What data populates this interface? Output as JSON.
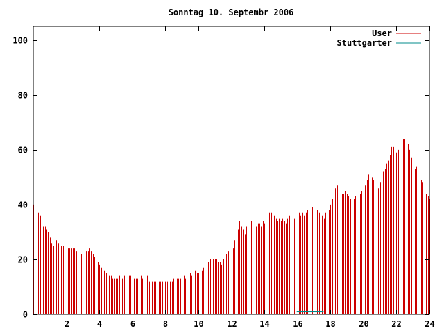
{
  "chart_data": {
    "type": "bar",
    "title": "Sonntag 10. Septembr 2006",
    "xlabel": "",
    "ylabel": "",
    "xlim": [
      0,
      24
    ],
    "ylim": [
      0,
      105
    ],
    "x_ticks": [
      "2",
      "4",
      "6",
      "8",
      "10",
      "12",
      "14",
      "16",
      "18",
      "20",
      "22",
      "24"
    ],
    "y_ticks": [
      "0",
      "20",
      "40",
      "60",
      "80",
      "100"
    ],
    "grid": false,
    "legend_position": "top-right",
    "series": [
      {
        "name": "User",
        "color": "#cc0000",
        "x_start": 0,
        "x_step": 0.1,
        "values": [
          40,
          38,
          37,
          37,
          36,
          32,
          32,
          32,
          31,
          30,
          28,
          26,
          25,
          26,
          27,
          26,
          25,
          25,
          25,
          24,
          24,
          24,
          24,
          24,
          24,
          24,
          23,
          23,
          23,
          22,
          23,
          23,
          23,
          23,
          24,
          23,
          22,
          21,
          20,
          19,
          18,
          17,
          16,
          16,
          15,
          15,
          14,
          14,
          13,
          13,
          13,
          13,
          14,
          13,
          13,
          14,
          14,
          14,
          14,
          14,
          14,
          13,
          13,
          13,
          13,
          14,
          13,
          14,
          13,
          14,
          12,
          12,
          12,
          12,
          12,
          12,
          12,
          12,
          12,
          12,
          12,
          12,
          13,
          12,
          12,
          13,
          13,
          13,
          13,
          13,
          14,
          14,
          13,
          14,
          14,
          15,
          14,
          15,
          16,
          15,
          15,
          14,
          16,
          17,
          18,
          18,
          19,
          20,
          22,
          20,
          20,
          20,
          19,
          19,
          18,
          20,
          23,
          22,
          23,
          24,
          24,
          24,
          27,
          28,
          31,
          34,
          32,
          31,
          29,
          32,
          35,
          33,
          34,
          32,
          33,
          32,
          33,
          33,
          32,
          34,
          33,
          34,
          36,
          37,
          37,
          37,
          36,
          35,
          34,
          35,
          34,
          35,
          34,
          33,
          35,
          36,
          35,
          34,
          35,
          36,
          37,
          37,
          36,
          37,
          36,
          37,
          38,
          40,
          40,
          39,
          40,
          47,
          38,
          37,
          38,
          36,
          35,
          37,
          39,
          38,
          40,
          42,
          44,
          46,
          47,
          46,
          46,
          44,
          44,
          45,
          44,
          43,
          42,
          43,
          42,
          43,
          42,
          43,
          44,
          45,
          47,
          47,
          49,
          51,
          51,
          50,
          49,
          48,
          47,
          46,
          48,
          50,
          52,
          53,
          55,
          56,
          58,
          61,
          61,
          60,
          59,
          60,
          62,
          63,
          64,
          64,
          65,
          62,
          60,
          57,
          55,
          53,
          54,
          52,
          51,
          49,
          48,
          46,
          44,
          43,
          42,
          41
        ]
      },
      {
        "name": "Stuttgarter",
        "color": "#008b8b",
        "x_start": 0,
        "x_step": 0.1,
        "values": [
          0,
          0,
          0,
          0,
          0,
          0,
          0,
          0,
          0,
          0,
          0,
          0,
          0,
          0,
          0,
          0,
          0,
          0,
          0,
          0,
          0,
          0,
          0,
          0,
          0,
          0,
          0,
          0,
          0,
          0,
          0,
          0,
          0,
          0,
          0,
          0,
          0,
          0,
          0,
          0,
          0,
          0,
          0,
          0,
          0,
          0,
          0,
          0,
          0,
          0,
          0,
          0,
          0,
          0,
          0,
          0,
          0,
          0,
          0,
          0,
          0,
          0,
          0,
          0,
          0,
          0,
          0,
          0,
          0,
          0,
          0,
          0,
          0,
          0,
          0,
          0,
          0,
          0,
          0,
          0,
          0,
          0,
          0,
          0,
          0,
          0,
          0,
          0,
          0,
          0,
          0,
          0,
          0,
          0,
          0,
          0,
          0,
          0,
          0,
          0,
          0,
          0,
          0,
          0,
          0,
          0,
          0,
          0,
          0,
          0,
          0,
          0,
          0,
          0,
          0,
          0,
          0,
          0,
          0,
          0,
          0,
          0,
          0,
          0,
          0,
          0,
          0,
          0,
          0,
          0,
          0,
          0,
          0,
          0,
          0,
          0,
          0,
          0,
          0,
          0,
          0,
          0,
          0,
          0,
          0,
          0,
          0,
          0,
          0,
          0,
          0,
          0,
          0,
          0,
          0,
          0,
          0,
          0,
          0,
          0,
          1,
          1,
          1,
          1,
          1,
          1,
          1,
          1,
          1,
          1,
          1,
          1,
          1,
          1,
          1,
          1,
          0,
          0,
          0,
          0,
          0,
          0,
          0,
          0,
          0,
          0,
          0,
          0,
          0,
          0,
          0,
          0,
          0,
          0,
          0,
          0,
          0,
          0,
          0,
          0,
          0,
          0,
          0,
          0,
          0,
          0,
          0,
          0,
          0,
          0,
          0,
          0,
          0,
          0,
          0,
          0,
          0,
          0,
          0,
          0,
          0,
          0,
          0,
          0,
          0,
          0,
          0,
          0,
          0,
          0,
          0,
          0,
          0,
          0,
          0,
          0,
          0,
          0,
          0,
          0,
          0,
          0
        ]
      }
    ]
  }
}
